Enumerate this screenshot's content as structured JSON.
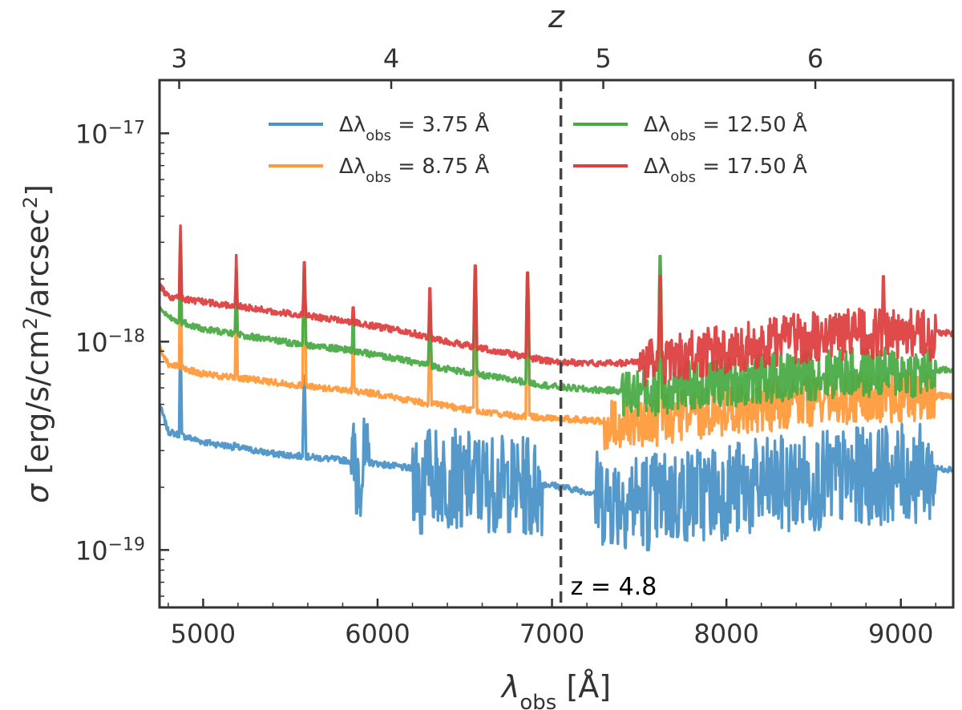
{
  "chart_data": {
    "type": "line",
    "xlabel": "λobs [Å]",
    "x_top_label": "z",
    "ylabel": "σ [erg/s/cm²/arcsec²]",
    "y_scale": "log",
    "xlim": [
      4750,
      9300
    ],
    "ylim": [
      5.3e-20,
      1.8e-17
    ],
    "x_ticks": [
      5000,
      6000,
      7000,
      8000,
      9000
    ],
    "x_tick_labels": [
      "5000",
      "6000",
      "7000",
      "8000",
      "9000"
    ],
    "y_ticks": [
      1e-19,
      1e-18,
      1e-17
    ],
    "y_tick_labels": [
      {
        "base": "10",
        "exp": "−19"
      },
      {
        "base": "10",
        "exp": "−18"
      },
      {
        "base": "10",
        "exp": "−17"
      }
    ],
    "top_ticks": [
      3,
      4,
      5,
      6
    ],
    "top_tick_labels": [
      "3",
      "4",
      "5",
      "6"
    ],
    "lya_rest_wavelength": 1215.67,
    "legend_placement": "top",
    "annotation": {
      "text": "z = 4.8",
      "z": 4.8
    },
    "series": [
      {
        "name": "Δλobs = 3.75 Å",
        "name_main": "Δλ",
        "name_sub": "obs",
        "name_value": " = 3.75 Å",
        "color": "#4c93c8",
        "x": [
          4750,
          4800,
          5000,
          5200,
          5400,
          5600,
          5800,
          6000,
          6200,
          6400,
          6600,
          6800,
          7000,
          7200,
          7400,
          7600,
          7800,
          8000,
          8200,
          8400,
          8600,
          8800,
          9000,
          9200,
          9300
        ],
        "y": [
          5e-19,
          3.7e-19,
          3.3e-19,
          3.1e-19,
          2.9e-19,
          2.8e-19,
          2.7e-19,
          2.6e-19,
          2.45e-19,
          2.35e-19,
          2.25e-19,
          2.15e-19,
          2.05e-19,
          1.9e-19,
          1.85e-19,
          1.85e-19,
          1.95e-19,
          2.05e-19,
          2.1e-19,
          2.2e-19,
          2.3e-19,
          2.4e-19,
          2.45e-19,
          2.45e-19,
          2.45e-19
        ],
        "spikes": [
          {
            "x": 4870,
            "y": 9.5e-19
          },
          {
            "x": 5180,
            "y": 3.8e-19
          },
          {
            "x": 5580,
            "y": 8e-19
          },
          {
            "x": 6300,
            "y": 3.6e-19
          },
          {
            "x": 6560,
            "y": 3.8e-19
          },
          {
            "x": 6860,
            "y": 4e-19
          }
        ],
        "dips": [
          {
            "x": 5880,
            "y": 1.5e-19
          },
          {
            "x": 6250,
            "y": 1.2e-19
          },
          {
            "x": 6480,
            "y": 1.3e-19
          },
          {
            "x": 6880,
            "y": 1.2e-19
          },
          {
            "x": 7420,
            "y": 1.2e-19
          },
          {
            "x": 7550,
            "y": 1e-19
          }
        ],
        "noise_ranges": [
          [
            5850,
            5950
          ],
          [
            6200,
            6950
          ],
          [
            7250,
            9200
          ]
        ]
      },
      {
        "name": "Δλobs = 8.75 Å",
        "name_main": "Δλ",
        "name_sub": "obs",
        "name_value": " = 8.75 Å",
        "color": "#ff9a3c",
        "x": [
          4750,
          4800,
          5000,
          5200,
          5400,
          5600,
          5800,
          6000,
          6200,
          6400,
          6600,
          6800,
          7000,
          7200,
          7400,
          7600,
          7800,
          8000,
          8200,
          8400,
          8600,
          8800,
          9000,
          9200,
          9300
        ],
        "y": [
          9.5e-19,
          7.8e-19,
          7e-19,
          6.7e-19,
          6.4e-19,
          6.1e-19,
          5.9e-19,
          5.6e-19,
          5.2e-19,
          4.9e-19,
          4.6e-19,
          4.4e-19,
          4.3e-19,
          4.2e-19,
          4.1e-19,
          4.3e-19,
          4.6e-19,
          4.8e-19,
          5e-19,
          5.2e-19,
          5.4e-19,
          5.5e-19,
          5.5e-19,
          5.5e-19,
          5.5e-19
        ],
        "spikes": [
          {
            "x": 4870,
            "y": 2.4e-18
          },
          {
            "x": 5190,
            "y": 1.5e-18
          },
          {
            "x": 5580,
            "y": 2.4e-18
          },
          {
            "x": 5860,
            "y": 1.1e-18
          },
          {
            "x": 6300,
            "y": 1.3e-18
          },
          {
            "x": 6560,
            "y": 2.4e-18
          },
          {
            "x": 6860,
            "y": 2.3e-18
          },
          {
            "x": 7620,
            "y": 2.6e-18
          }
        ],
        "dips": [],
        "noise_ranges": [
          [
            7300,
            9200
          ]
        ]
      },
      {
        "name": "Δλobs = 12.50 Å",
        "name_main": "Δλ",
        "name_sub": "obs",
        "name_value": " = 12.50 Å",
        "color": "#4aab46",
        "x": [
          4750,
          4800,
          5000,
          5200,
          5400,
          5600,
          5800,
          6000,
          6200,
          6400,
          6600,
          6800,
          7000,
          7200,
          7400,
          7600,
          7800,
          8000,
          8200,
          8400,
          8600,
          8800,
          9000,
          9200,
          9300
        ],
        "y": [
          1.45e-18,
          1.3e-18,
          1.15e-18,
          1.08e-18,
          1.02e-18,
          9.6e-19,
          9.2e-19,
          8.6e-19,
          8e-19,
          7.4e-19,
          6.9e-19,
          6.5e-19,
          6.1e-19,
          5.9e-19,
          5.8e-19,
          6e-19,
          6.3e-19,
          6.6e-19,
          6.8e-19,
          7e-19,
          7.2e-19,
          7.3e-19,
          7.3e-19,
          7.3e-19,
          7.3e-19
        ],
        "spikes": [
          {
            "x": 4870,
            "y": 3e-18
          },
          {
            "x": 5190,
            "y": 2.2e-18
          },
          {
            "x": 5580,
            "y": 2.6e-18
          },
          {
            "x": 5860,
            "y": 1.5e-18
          },
          {
            "x": 6300,
            "y": 1.8e-18
          },
          {
            "x": 6560,
            "y": 2.6e-18
          },
          {
            "x": 6860,
            "y": 2.5e-18
          },
          {
            "x": 7620,
            "y": 3e-18
          }
        ],
        "dips": [],
        "noise_ranges": [
          [
            7400,
            9200
          ]
        ]
      },
      {
        "name": "Δλobs = 17.50 Å",
        "name_main": "Δλ",
        "name_sub": "obs",
        "name_value": " = 17.50 Å",
        "color": "#dd4040",
        "x": [
          4750,
          4800,
          5000,
          5200,
          5400,
          5600,
          5800,
          6000,
          6200,
          6400,
          6600,
          6800,
          7000,
          7200,
          7400,
          7600,
          7800,
          8000,
          8200,
          8400,
          8600,
          8800,
          9000,
          9200,
          9300
        ],
        "y": [
          1.85e-18,
          1.65e-18,
          1.55e-18,
          1.48e-18,
          1.4e-18,
          1.33e-18,
          1.26e-18,
          1.18e-18,
          1.1e-18,
          1e-18,
          9.3e-19,
          8.6e-19,
          8e-19,
          7.9e-19,
          7.9e-19,
          8.2e-19,
          8.8e-19,
          9.4e-19,
          1e-18,
          1.06e-18,
          1.1e-18,
          1.13e-18,
          1.13e-18,
          1.1e-18,
          1.1e-18
        ],
        "spikes": [
          {
            "x": 4870,
            "y": 3.6e-18
          },
          {
            "x": 5190,
            "y": 2.6e-18
          },
          {
            "x": 5580,
            "y": 2.8e-18
          },
          {
            "x": 5860,
            "y": 1.7e-18
          },
          {
            "x": 6300,
            "y": 2.1e-18
          },
          {
            "x": 6560,
            "y": 2.7e-18
          },
          {
            "x": 6860,
            "y": 2.5e-18
          },
          {
            "x": 7620,
            "y": 2.4e-18
          },
          {
            "x": 8900,
            "y": 2.4e-18
          }
        ],
        "dips": [],
        "noise_ranges": [
          [
            7500,
            9200
          ]
        ]
      }
    ]
  }
}
